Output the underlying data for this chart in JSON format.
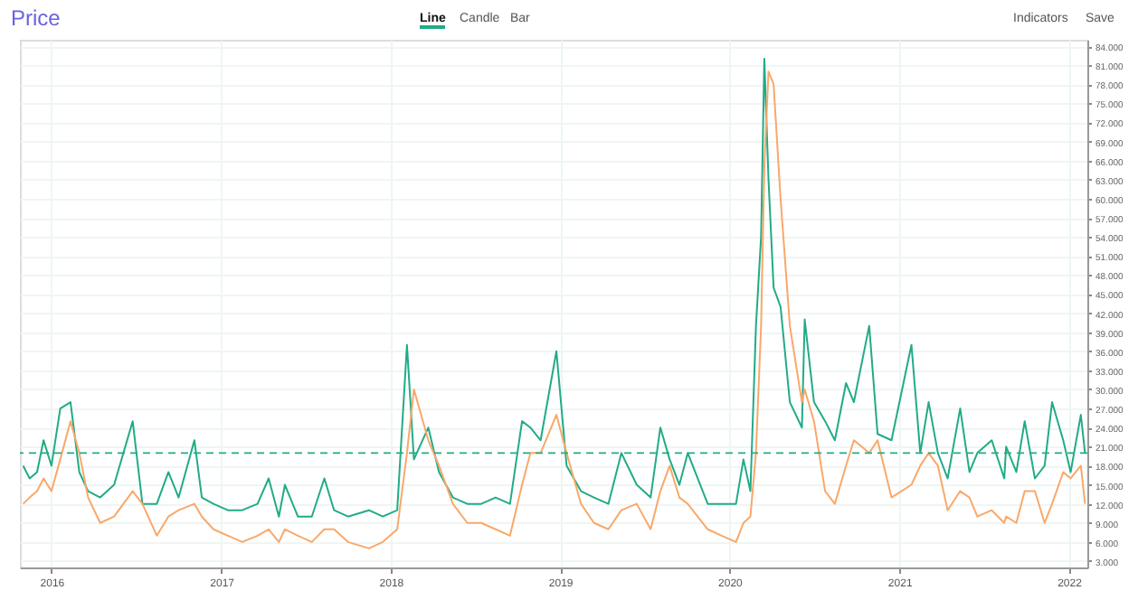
{
  "chart_data": {
    "type": "line",
    "title": "Price",
    "annotations": [
      "Line",
      "Candle",
      "Bar",
      "Indicators",
      "Save"
    ],
    "x": [
      "2015-11-01",
      "2015-11-15",
      "2015-12-01",
      "2015-12-15",
      "2016-01-01",
      "2016-01-20",
      "2016-02-11",
      "2016-03-01",
      "2016-03-20",
      "2016-04-15",
      "2016-05-15",
      "2016-06-24",
      "2016-07-15",
      "2016-08-15",
      "2016-09-09",
      "2016-10-01",
      "2016-11-04",
      "2016-11-20",
      "2016-12-15",
      "2017-01-15",
      "2017-02-15",
      "2017-03-20",
      "2017-04-13",
      "2017-05-05",
      "2017-05-18",
      "2017-06-15",
      "2017-07-15",
      "2017-08-11",
      "2017-09-01",
      "2017-10-01",
      "2017-11-15",
      "2017-12-15",
      "2018-01-15",
      "2018-02-05",
      "2018-02-20",
      "2018-03-23",
      "2018-04-15",
      "2018-05-15",
      "2018-06-15",
      "2018-07-15",
      "2018-08-15",
      "2018-09-15",
      "2018-10-11",
      "2018-10-29",
      "2018-11-20",
      "2018-12-24",
      "2019-01-15",
      "2019-02-15",
      "2019-03-15",
      "2019-04-15",
      "2019-05-13",
      "2019-06-15",
      "2019-07-15",
      "2019-08-05",
      "2019-08-25",
      "2019-09-15",
      "2019-10-03",
      "2019-11-15",
      "2019-12-15",
      "2020-01-15",
      "2020-01-31",
      "2020-02-15",
      "2020-02-27",
      "2020-03-09",
      "2020-03-16",
      "2020-03-25",
      "2020-04-05",
      "2020-04-20",
      "2020-05-10",
      "2020-06-05",
      "2020-06-11",
      "2020-07-01",
      "2020-07-25",
      "2020-08-15",
      "2020-09-08",
      "2020-09-25",
      "2020-10-28",
      "2020-11-15",
      "2020-12-15",
      "2021-01-27",
      "2021-02-15",
      "2021-03-05",
      "2021-03-25",
      "2021-04-15",
      "2021-05-12",
      "2021-06-01",
      "2021-06-18",
      "2021-07-19",
      "2021-08-15",
      "2021-08-19",
      "2021-09-10",
      "2021-09-28",
      "2021-10-20",
      "2021-11-10",
      "2021-11-26",
      "2021-12-20",
      "2022-01-05",
      "2022-01-27",
      "2022-02-05"
    ],
    "series": [
      {
        "color": "#22ab87",
        "values": [
          18,
          16,
          17,
          22,
          18,
          27,
          28,
          17,
          14,
          13,
          15,
          25,
          12,
          12,
          17,
          13,
          22,
          13,
          12,
          11,
          11,
          12,
          16,
          10,
          15,
          10,
          10,
          16,
          11,
          10,
          11,
          10,
          11,
          37,
          19,
          24,
          17,
          13,
          12,
          12,
          13,
          12,
          25,
          24,
          22,
          36,
          18,
          14,
          13,
          12,
          20,
          15,
          13,
          24,
          19,
          15,
          20,
          12,
          12,
          12,
          19,
          14,
          40,
          54,
          82,
          63,
          46,
          43,
          28,
          24,
          41,
          28,
          25,
          22,
          31,
          28,
          40,
          23,
          22,
          37,
          20,
          28,
          20,
          16,
          27,
          17,
          20,
          22,
          16,
          21,
          17,
          25,
          16,
          18,
          28,
          22,
          17,
          26,
          20
        ]
      },
      {
        "color": "#f9a86a",
        "values": [
          12,
          13,
          14,
          16,
          14,
          19,
          25,
          20,
          13,
          9,
          10,
          14,
          12,
          7,
          10,
          11,
          12,
          10,
          8,
          7,
          6,
          7,
          8,
          6,
          8,
          7,
          6,
          8,
          8,
          6,
          5,
          6,
          8,
          20,
          30,
          22,
          18,
          12,
          9,
          9,
          8,
          7,
          15,
          20,
          20,
          26,
          20,
          12,
          9,
          8,
          11,
          12,
          8,
          14,
          18,
          13,
          12,
          8,
          7,
          6,
          9,
          10,
          20,
          40,
          65,
          80,
          78,
          60,
          40,
          28,
          30,
          25,
          14,
          12,
          18,
          22,
          20,
          22,
          13,
          15,
          18,
          20,
          18,
          11,
          14,
          13,
          10,
          11,
          9,
          10,
          9,
          14,
          14,
          9,
          12,
          17,
          16,
          18,
          12
        ]
      }
    ],
    "xlim": [
      "2015-10-25",
      "2022-02-10"
    ],
    "xticks": [
      "2016",
      "2017",
      "2018",
      "2019",
      "2020",
      "2021",
      "2022"
    ],
    "ylim": [
      2,
      85
    ],
    "yticks": [
      {
        "value": 3,
        "label": "3.000"
      },
      {
        "value": 6,
        "label": "6.000"
      },
      {
        "value": 9,
        "label": "9.000"
      },
      {
        "value": 12,
        "label": "12.000"
      },
      {
        "value": 15,
        "label": "15.000"
      },
      {
        "value": 18,
        "label": "18.000"
      },
      {
        "value": 21,
        "label": "21.000"
      },
      {
        "value": 24,
        "label": "24.000"
      },
      {
        "value": 27,
        "label": "27.000"
      },
      {
        "value": 30,
        "label": "30.000"
      },
      {
        "value": 33,
        "label": "33.000"
      },
      {
        "value": 36,
        "label": "36.000"
      },
      {
        "value": 39,
        "label": "39.000"
      },
      {
        "value": 42,
        "label": "42.000"
      },
      {
        "value": 45,
        "label": "45.000"
      },
      {
        "value": 48,
        "label": "48.000"
      },
      {
        "value": 51,
        "label": "51.000"
      },
      {
        "value": 54,
        "label": "54.000"
      },
      {
        "value": 57,
        "label": "57.000"
      },
      {
        "value": 60,
        "label": "60.000"
      },
      {
        "value": 63,
        "label": "63.000"
      },
      {
        "value": 66,
        "label": "66.000"
      },
      {
        "value": 69,
        "label": "69.000"
      },
      {
        "value": 72,
        "label": "72.000"
      },
      {
        "value": 75,
        "label": "75.000"
      },
      {
        "value": 78,
        "label": "78.000"
      },
      {
        "value": 81,
        "label": "81.000"
      },
      {
        "value": 84,
        "label": "84.000"
      }
    ],
    "ref_lines": [
      {
        "axis": "y",
        "value": 20,
        "color": "#22ab87",
        "line_style": "dashed"
      }
    ],
    "grid": true,
    "marker": "none",
    "line_style": "solid"
  }
}
